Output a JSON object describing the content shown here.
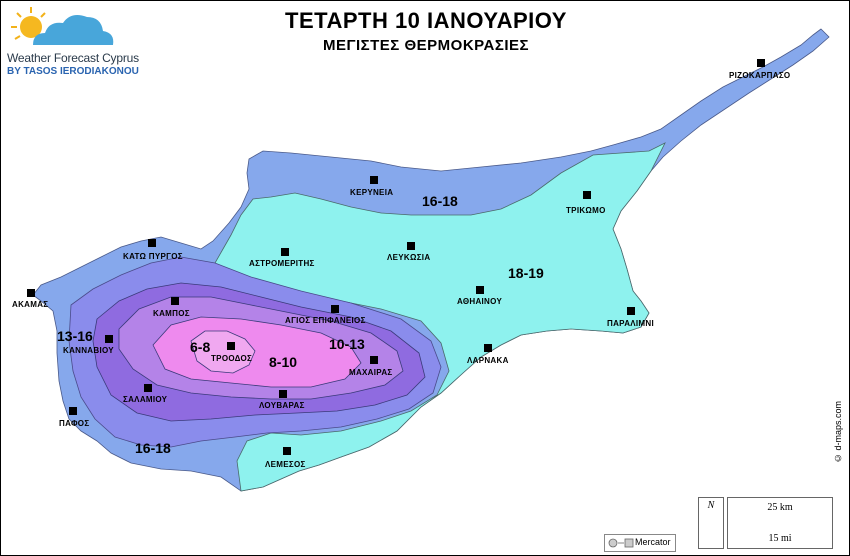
{
  "header": {
    "title": "ΤΕΤΑΡΤΗ 10 ΙΑΝΟΥΑΡΙΟΥ",
    "subtitle": "ΜΕΓΙΣΤΕΣ ΘΕΡΜΟΚΡΑΣΙΕΣ"
  },
  "logo": {
    "line1": "Weather Forecast Cyprus",
    "line2": "BY TASOS IERODIAKONOU"
  },
  "zones": {
    "z1": "16-18",
    "z2": "18-19",
    "z3": "13-16",
    "z4": "6-8",
    "z5": "8-10",
    "z6": "10-13",
    "z7": "16-18"
  },
  "places": {
    "rizokarpaso": "ΡΙΖΟΚΑΡΠΑΣΟ",
    "kyreneia": "ΚΕΡΥΝΕΙΑ",
    "trikomo": "ΤΡΙΚΩΜΟ",
    "kato_pyrgos": "ΚΑΤΩ ΠΥΡΓΟΣ",
    "astromeritis": "ΑΣΤΡΟΜΕΡΙΤΗΣ",
    "lefkosia": "ΛΕΥΚΩΣΙΑ",
    "akamas": "ΑΚΑΜΑΣ",
    "athainou": "ΑΘΗΑΙΝΟΥ",
    "kampos": "ΚΑΜΠΟΣ",
    "agios_epifanios": "ΑΓΙΟΣ ΕΠΙΦΑΝΕΙΟΣ",
    "paralimni": "ΠΑΡΑΛΙΜΝΙ",
    "kannavioy": "ΚΑΝΝΑΒΙΟΥ",
    "troodos": "ΤΡΟΟΔΟΣ",
    "machairas": "ΜΑΧΑΙΡΑΣ",
    "larnaka": "ΛΑΡΝΑΚΑ",
    "salamioy": "ΣΑΛΑΜΙΟΥ",
    "louvaras": "ΛΟΥΒΑΡΑΣ",
    "pafos": "ΠΑΦΟΣ",
    "lemesos": "ΛΕΜΕΣΟΣ"
  },
  "footer": {
    "credit": "© d-maps.com",
    "north": "N",
    "scale_km": "25 km",
    "scale_mi": "15 mi",
    "projection": "Mercator"
  },
  "colors": {
    "outer_blue": "#86a8ec",
    "cyan": "#8ef2ee",
    "mid_blue": "#8a8cec",
    "violet": "#8f6be0",
    "lavender": "#b483e8",
    "pink": "#ee8aee"
  }
}
